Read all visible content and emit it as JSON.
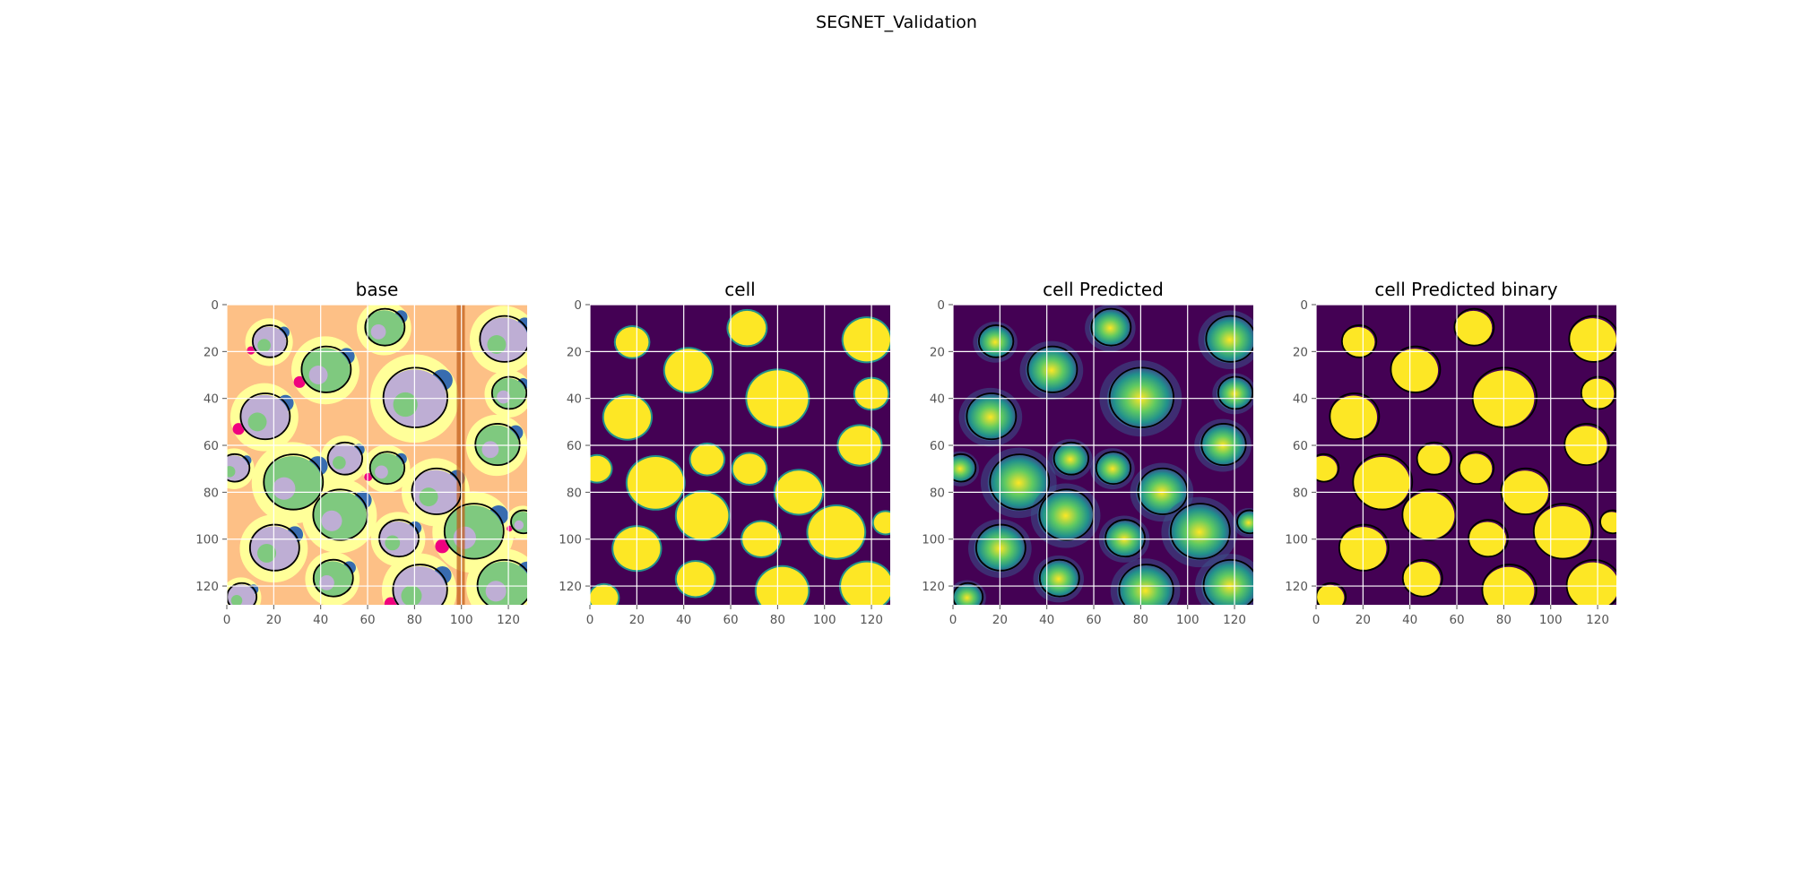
{
  "figure": {
    "title": "SEGNET_Validation"
  },
  "chart_data": [
    {
      "type": "heatmap",
      "title": "base",
      "colormap": "Accent",
      "palette": [
        "#7fc97f",
        "#beaed4",
        "#fdc086",
        "#ffff99",
        "#386cb0",
        "#f0027f",
        "#bf5b17"
      ],
      "xlim": [
        0,
        128
      ],
      "ylim": [
        128,
        0
      ],
      "xticks": [
        "0",
        "20",
        "40",
        "60",
        "80",
        "100",
        "120"
      ],
      "yticks": [
        "0",
        "20",
        "40",
        "60",
        "80",
        "100",
        "120"
      ],
      "grid": true,
      "contour_overlay": true
    },
    {
      "type": "heatmap",
      "title": "cell",
      "colormap": "viridis",
      "palette": [
        "#440154",
        "#21918c",
        "#fde725"
      ],
      "xlim": [
        0,
        128
      ],
      "ylim": [
        128,
        0
      ],
      "xticks": [
        "0",
        "20",
        "40",
        "60",
        "80",
        "100",
        "120"
      ],
      "yticks": [
        "0",
        "20",
        "40",
        "60",
        "80",
        "100",
        "120"
      ],
      "grid": true,
      "contour_overlay": false
    },
    {
      "type": "heatmap",
      "title": "cell Predicted",
      "colormap": "viridis",
      "palette": [
        "#440154",
        "#3b528b",
        "#21918c",
        "#5ec962",
        "#fde725"
      ],
      "xlim": [
        0,
        128
      ],
      "ylim": [
        128,
        0
      ],
      "xticks": [
        "0",
        "20",
        "40",
        "60",
        "80",
        "100",
        "120"
      ],
      "yticks": [
        "0",
        "20",
        "40",
        "60",
        "80",
        "100",
        "120"
      ],
      "grid": true,
      "contour_overlay": true
    },
    {
      "type": "heatmap",
      "title": "cell Predicted binary",
      "colormap": "viridis",
      "palette": [
        "#440154",
        "#fde725"
      ],
      "xlim": [
        0,
        128
      ],
      "ylim": [
        128,
        0
      ],
      "xticks": [
        "0",
        "20",
        "40",
        "60",
        "80",
        "100",
        "120"
      ],
      "yticks": [
        "0",
        "20",
        "40",
        "60",
        "80",
        "100",
        "120"
      ],
      "grid": true,
      "contour_overlay": true
    }
  ],
  "cells": [
    {
      "x": 18,
      "y": 16,
      "r": 7
    },
    {
      "x": 67,
      "y": 10,
      "r": 8
    },
    {
      "x": 118,
      "y": 15,
      "r": 10
    },
    {
      "x": 42,
      "y": 28,
      "r": 10
    },
    {
      "x": 80,
      "y": 40,
      "r": 13
    },
    {
      "x": 120,
      "y": 38,
      "r": 7
    },
    {
      "x": 16,
      "y": 48,
      "r": 10
    },
    {
      "x": 28,
      "y": 76,
      "r": 12
    },
    {
      "x": 50,
      "y": 66,
      "r": 7
    },
    {
      "x": 68,
      "y": 70,
      "r": 7
    },
    {
      "x": 89,
      "y": 80,
      "r": 10
    },
    {
      "x": 115,
      "y": 60,
      "r": 9
    },
    {
      "x": 3,
      "y": 70,
      "r": 6
    },
    {
      "x": 48,
      "y": 90,
      "r": 11
    },
    {
      "x": 73,
      "y": 100,
      "r": 8
    },
    {
      "x": 105,
      "y": 97,
      "r": 12
    },
    {
      "x": 20,
      "y": 104,
      "r": 10
    },
    {
      "x": 45,
      "y": 117,
      "r": 8
    },
    {
      "x": 82,
      "y": 122,
      "r": 11
    },
    {
      "x": 118,
      "y": 120,
      "r": 11
    },
    {
      "x": 6,
      "y": 125,
      "r": 6
    },
    {
      "x": 126,
      "y": 93,
      "r": 5
    }
  ]
}
